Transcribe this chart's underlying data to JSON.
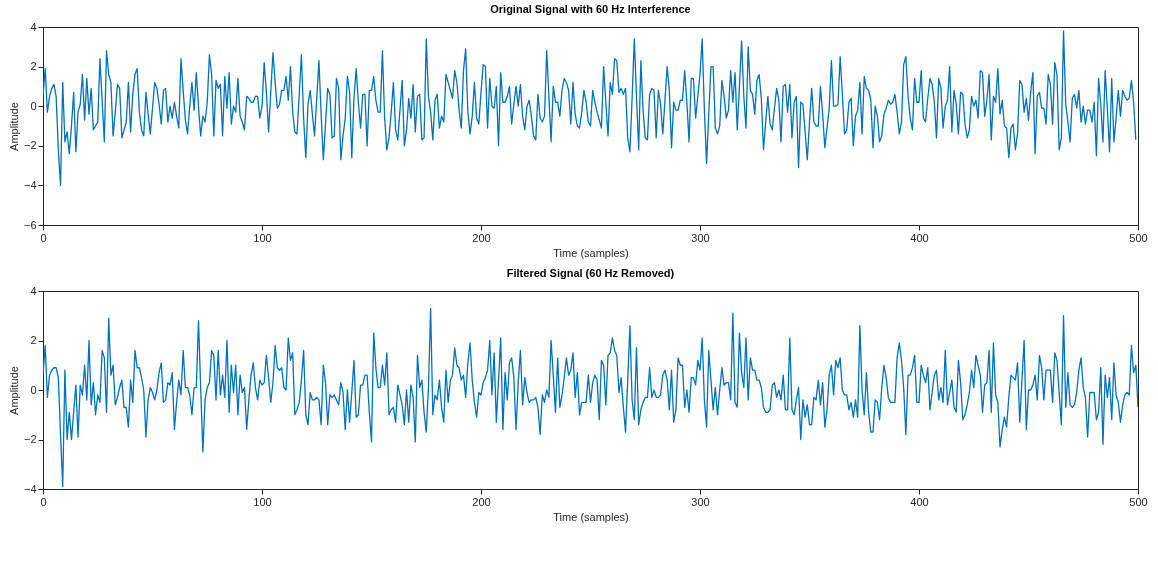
{
  "chart_data": [
    {
      "type": "line",
      "title": "Original Signal with 60 Hz Interference",
      "xlabel": "Time (samples)",
      "ylabel": "Amplitude",
      "xlim": [
        0,
        500
      ],
      "xticks": [
        0,
        100,
        200,
        300,
        400,
        500
      ],
      "ylim": [
        -6,
        4
      ],
      "yticks": [
        -6,
        -4,
        -2,
        0,
        2,
        4
      ],
      "x": [
        0,
        1,
        2,
        3,
        4,
        5,
        6,
        7,
        8,
        9,
        10,
        11,
        12,
        13,
        14,
        15,
        16,
        17,
        18,
        19,
        20,
        21,
        22,
        23,
        24,
        25,
        26,
        27,
        28,
        29,
        30,
        31,
        32,
        33,
        34,
        35,
        36,
        37,
        38,
        39,
        40,
        41,
        42,
        43,
        44,
        45,
        46,
        47,
        48,
        49,
        50,
        51,
        52,
        53,
        54,
        55,
        56,
        57,
        58,
        59,
        60,
        61,
        62,
        63,
        64,
        65,
        66,
        67,
        68,
        69,
        70,
        71,
        72,
        73,
        74,
        75,
        76,
        77,
        78,
        79,
        80,
        81,
        82,
        83,
        84,
        85,
        86,
        87,
        88,
        89,
        90,
        91,
        92,
        93,
        94,
        95,
        96,
        97,
        98,
        99,
        100,
        101,
        102,
        103,
        104,
        105,
        106,
        107,
        108,
        109,
        110,
        111,
        112,
        113,
        114,
        115,
        116,
        117,
        118,
        119,
        120,
        121,
        122,
        123,
        124,
        125,
        126,
        127,
        128,
        129,
        130,
        131,
        132,
        133,
        134,
        135,
        136,
        137,
        138,
        139,
        140,
        141,
        142,
        143,
        144,
        145,
        146,
        147,
        148,
        149,
        150,
        151,
        152,
        153,
        154,
        155,
        156,
        157,
        158,
        159,
        160,
        161,
        162,
        163,
        164,
        165,
        166,
        167,
        168,
        169,
        170,
        171,
        172,
        173,
        174,
        175,
        176,
        177,
        178,
        179,
        180,
        181,
        182,
        183,
        184,
        185,
        186,
        187,
        188,
        189,
        190,
        191,
        192,
        193,
        194,
        195,
        196,
        197,
        198,
        199,
        200,
        201,
        202,
        203,
        204,
        205,
        206,
        207,
        208,
        209,
        210,
        211,
        212,
        213,
        214,
        215,
        216,
        217,
        218,
        219,
        220,
        221,
        222,
        223,
        224,
        225,
        226,
        227,
        228,
        229,
        230,
        231,
        232,
        233,
        234,
        235,
        236,
        237,
        238,
        239,
        240,
        241,
        242,
        243,
        244,
        245,
        246,
        247,
        248,
        249,
        250,
        251,
        252,
        253,
        254,
        255,
        256,
        257,
        258,
        259,
        260,
        261,
        262,
        263,
        264,
        265,
        266,
        267,
        268,
        269,
        270,
        271,
        272,
        273,
        274,
        275,
        276,
        277,
        278,
        279,
        280,
        281,
        282,
        283,
        284,
        285,
        286,
        287,
        288,
        289,
        290,
        291,
        292,
        293,
        294,
        295,
        296,
        297,
        298,
        299,
        300,
        301,
        302,
        303,
        304,
        305,
        306,
        307,
        308,
        309,
        310,
        311,
        312,
        313,
        314,
        315,
        316,
        317,
        318,
        319,
        320,
        321,
        322,
        323,
        324,
        325,
        326,
        327,
        328,
        329,
        330,
        331,
        332,
        333,
        334,
        335,
        336,
        337,
        338,
        339,
        340,
        341,
        342,
        343,
        344,
        345,
        346,
        347,
        348,
        349,
        350,
        351,
        352,
        353,
        354,
        355,
        356,
        357,
        358,
        359,
        360,
        361,
        362,
        363,
        364,
        365,
        366,
        367,
        368,
        369,
        370,
        371,
        372,
        373,
        374,
        375,
        376,
        377,
        378,
        379,
        380,
        381,
        382,
        383,
        384,
        385,
        386,
        387,
        388,
        389,
        390,
        391,
        392,
        393,
        394,
        395,
        396,
        397,
        398,
        399,
        400,
        401,
        402,
        403,
        404,
        405,
        406,
        407,
        408,
        409,
        410,
        411,
        412,
        413,
        414,
        415,
        416,
        417,
        418,
        419,
        420,
        421,
        422,
        423,
        424,
        425,
        426,
        427,
        428,
        429,
        430,
        431,
        432,
        433,
        434,
        435,
        436,
        437,
        438,
        439,
        440,
        441,
        442,
        443,
        444,
        445,
        446,
        447,
        448,
        449,
        450,
        451,
        452,
        453,
        454,
        455,
        456,
        457,
        458,
        459,
        460,
        461,
        462,
        463,
        464,
        465,
        466,
        467,
        468,
        469,
        470,
        471,
        472,
        473,
        474,
        475,
        476,
        477,
        478,
        479,
        480,
        481,
        482,
        483,
        484,
        485,
        486,
        487,
        488,
        489,
        490,
        491,
        492,
        493,
        494,
        495,
        496,
        497,
        498,
        499
      ],
      "series": [
        {
          "color": "#0072bd",
          "values": [
            0.5,
            1.9,
            -0.3,
            0.5,
            0.9,
            1.1,
            0.5,
            -2.2,
            -4.0,
            1.2,
            -1.8,
            -1.3,
            -2.4,
            -1.0,
            0.7,
            -2.3,
            -0.3,
            0.1,
            1.6,
            -0.7,
            1.4,
            -0.4,
            0.9,
            -1.2,
            -1.0,
            -0.8,
            2.4,
            0.3,
            -1.8,
            2.8,
            1.6,
            1.2,
            -1.5,
            -0.3,
            1.1,
            0.9,
            -1.6,
            -1.2,
            -0.8,
            1.2,
            -1.3,
            0.6,
            1.6,
            1.9,
            -0.3,
            -1.2,
            -1.5,
            0.7,
            -0.4,
            -1.4,
            -0.1,
            1.2,
            0.9,
            0.1,
            -0.9,
            0.8,
            0.9,
            -0.8,
            0,
            -0.6,
            0.2,
            -0.5,
            -1.1,
            2.4,
            0.8,
            -0.7,
            -1.4,
            0,
            1.2,
            -0.2,
            1.7,
            0,
            -1.5,
            -0.5,
            -0.8,
            0.2,
            2.6,
            1.6,
            -1.5,
            1.3,
            0.9,
            1.1,
            -1.5,
            1.5,
            -0.1,
            1.7,
            -0.9,
            0,
            -0.3,
            1.4,
            -0.5,
            -0.8,
            -1.2,
            0.5,
            0.4,
            0.2,
            0.2,
            0.5,
            0.5,
            -0.6,
            0,
            2.2,
            0.7,
            -1.3,
            0.7,
            2.7,
            1.2,
            -0.1,
            0.1,
            0.8,
            0.8,
            1.5,
            0.3,
            2.0,
            -0.3,
            -1.3,
            -1.4,
            0.6,
            2.6,
            -0.6,
            -2.6,
            0.1,
            0.8,
            -0.4,
            -1.5,
            0.4,
            2.3,
            -0.4,
            -2.7,
            -0.9,
            0.9,
            0.6,
            -1.6,
            -1.5,
            1.4,
            0.9,
            -2.7,
            -1.5,
            -0.6,
            1.5,
            0.7,
            -2.6,
            0.4,
            1.9,
            0.2,
            -1.1,
            0.6,
            0.6,
            -2.0,
            0.8,
            0.8,
            1.5,
            0.3,
            -0.3,
            -0.3,
            2.8,
            -0.6,
            -2.2,
            -1.6,
            -0.3,
            1.2,
            -1.2,
            -1.7,
            -0.2,
            1.3,
            -2.0,
            -1.2,
            0.4,
            -0.6,
            1.1,
            -1.3,
            0.5,
            0.6,
            -1.7,
            -1.6,
            3.4,
            0.5,
            -0.3,
            -1.7,
            0.3,
            0.6,
            -1.1,
            -0.5,
            -0.8,
            1.6,
            1.2,
            0.8,
            0.4,
            1.8,
            1.2,
            -0.2,
            -1.1,
            1.8,
            2.9,
            -0.3,
            -1.4,
            -0.5,
            1.2,
            -0.6,
            -0.9,
            0.7,
            2.1,
            2.0,
            -1.1,
            1.4,
            0,
            -0.1,
            1.0,
            -2.0,
            1.7,
            0.2,
            0.2,
            0.5,
            1.0,
            -0.9,
            0.1,
            1.0,
            0,
            1.1,
            -0.5,
            -1.2,
            0,
            0.3,
            -0.5,
            -1.5,
            -1.7,
            0.6,
            -0.6,
            -0.8,
            -0.5,
            2.8,
            0.5,
            -1.8,
            1.0,
            0.2,
            0.2,
            -0.5,
            0.8,
            1.4,
            1.2,
            0.8,
            -0.9,
            1.2,
            -0.4,
            -1.0,
            -1.1,
            -0.3,
            0.8,
            0.2,
            -0.8,
            -1.0,
            0.8,
            0.2,
            -0.3,
            -0.7,
            -1.1,
            2.0,
            0.2,
            -1.5,
            1.2,
            0.6,
            2.4,
            2.3,
            0.7,
            0.9,
            0.6,
            0.9,
            -1.6,
            -2.3,
            0.4,
            3.4,
            0.5,
            -2.2,
            2.3,
            -0.2,
            -1.6,
            -1.7,
            0.6,
            0.9,
            0.8,
            -1.6,
            0.8,
            0.1,
            -1.4,
            0.3,
            2.0,
            0.8,
            -2.1,
            0.2,
            -0.2,
            -0.2,
            0.3,
            0.3,
            1.8,
            0.2,
            -1.8,
            1.4,
            1.4,
            -0.6,
            0.5,
            1.6,
            3.4,
            -0.2,
            -2.9,
            -0.4,
            2.0,
            2.0,
            -1.1,
            -1.4,
            -1.0,
            1.3,
            0.5,
            -0.6,
            -0.2,
            1.8,
            0.2,
            1.7,
            -1.2,
            1.0,
            3.3,
            0.5,
            -1.1,
            3.0,
            0.8,
            0.6,
            -0.4,
            1.3,
            1.6,
            0.4,
            -2.2,
            -0.8,
            0.5,
            -0.9,
            -1.2,
            -0.1,
            0.9,
            0.3,
            -1.8,
            1.0,
            1.1,
            -0.3,
            1.1,
            -1.6,
            0.2,
            0.5,
            -3.1,
            0.2,
            0.1,
            -1.3,
            -2.7,
            -0.8,
            0.9,
            -0.8,
            -1.0,
            -1.0,
            1.0,
            -0.4,
            -2.1,
            -1.1,
            -0.1,
            2.3,
            0,
            0,
            0.1,
            2.5,
            0.6,
            -1.4,
            -1.2,
            0.2,
            0.4,
            -2.0,
            -0.5,
            -0.2,
            1.2,
            -1.4,
            1.5,
            0.9,
            0.8,
            0.3,
            -2.1,
            0,
            -0.5,
            -1.8,
            -1.5,
            -0.4,
            -0.1,
            0.3,
            0.1,
            0.2,
            0.6,
            -0.3,
            -1.4,
            -0.8,
            2.1,
            2.5,
            0.5,
            -0.6,
            -1.2,
            1.4,
            0.2,
            0.2,
            1.8,
            -0.6,
            -0.8,
            0.4,
            1.4,
            1.1,
            0.2,
            -1.6,
            1.4,
            0.9,
            -1.1,
            0,
            0.3,
            2.0,
            -1.3,
            0.8,
            0.1,
            -1.4,
            0.7,
            0.6,
            -0.9,
            -1.6,
            -1.2,
            0.5,
            0,
            0.3,
            -0.6,
            1.8,
            1.7,
            -0.5,
            0.3,
            1.6,
            -1.7,
            0.5,
            0.2,
            1.9,
            -0.4,
            0.3,
            -1.0,
            -1.1,
            -2.6,
            -1.1,
            -0.9,
            -2.2,
            -1.4,
            1.3,
            1.1,
            -0.3,
            0.4,
            -0.7,
            0.7,
            1.7,
            -2.4,
            0.5,
            0.7,
            -0.1,
            -0.1,
            -0.9,
            1.6,
            1.1,
            -0.9,
            2.2,
            1.6,
            -2.2,
            -1.6,
            3.8,
            0.1,
            -0.8,
            -1.8,
            0.4,
            0.6,
            -0.1,
            0.8,
            -0.8,
            0,
            -0.9,
            -0.2,
            -0.2,
            -0.8,
            0.2,
            -2.5,
            1.4,
            0.1,
            -1.8,
            1.8,
            -0.1,
            -2.3,
            1.4,
            -1.8,
            -0.6,
            0.8,
            -0.5,
            0.8,
            0.5,
            0.3,
            0.4,
            1.3,
            0.2,
            -1.7
          ]
        }
      ]
    },
    {
      "type": "line",
      "title": "Filtered Signal (60 Hz Removed)",
      "xlabel": "Time (samples)",
      "ylabel": "Amplitude",
      "xlim": [
        0,
        500
      ],
      "xticks": [
        0,
        100,
        200,
        300,
        400,
        500
      ],
      "ylim": [
        -4,
        4
      ],
      "yticks": [
        -4,
        -2,
        0,
        2,
        4
      ],
      "x": [
        0,
        1,
        2,
        3,
        4,
        5,
        6,
        7,
        8,
        9,
        10,
        11,
        12,
        13,
        14,
        15,
        16,
        17,
        18,
        19,
        20,
        21,
        22,
        23,
        24,
        25,
        26,
        27,
        28,
        29,
        30,
        31,
        32,
        33,
        34,
        35,
        36,
        37,
        38,
        39,
        40,
        41,
        42,
        43,
        44,
        45,
        46,
        47,
        48,
        49,
        50,
        51,
        52,
        53,
        54,
        55,
        56,
        57,
        58,
        59,
        60,
        61,
        62,
        63,
        64,
        65,
        66,
        67,
        68,
        69,
        70,
        71,
        72,
        73,
        74,
        75,
        76,
        77,
        78,
        79,
        80,
        81,
        82,
        83,
        84,
        85,
        86,
        87,
        88,
        89,
        90,
        91,
        92,
        93,
        94,
        95,
        96,
        97,
        98,
        99,
        100,
        101,
        102,
        103,
        104,
        105,
        106,
        107,
        108,
        109,
        110,
        111,
        112,
        113,
        114,
        115,
        116,
        117,
        118,
        119,
        120,
        121,
        122,
        123,
        124,
        125,
        126,
        127,
        128,
        129,
        130,
        131,
        132,
        133,
        134,
        135,
        136,
        137,
        138,
        139,
        140,
        141,
        142,
        143,
        144,
        145,
        146,
        147,
        148,
        149,
        150,
        151,
        152,
        153,
        154,
        155,
        156,
        157,
        158,
        159,
        160,
        161,
        162,
        163,
        164,
        165,
        166,
        167,
        168,
        169,
        170,
        171,
        172,
        173,
        174,
        175,
        176,
        177,
        178,
        179,
        180,
        181,
        182,
        183,
        184,
        185,
        186,
        187,
        188,
        189,
        190,
        191,
        192,
        193,
        194,
        195,
        196,
        197,
        198,
        199,
        200,
        201,
        202,
        203,
        204,
        205,
        206,
        207,
        208,
        209,
        210,
        211,
        212,
        213,
        214,
        215,
        216,
        217,
        218,
        219,
        220,
        221,
        222,
        223,
        224,
        225,
        226,
        227,
        228,
        229,
        230,
        231,
        232,
        233,
        234,
        235,
        236,
        237,
        238,
        239,
        240,
        241,
        242,
        243,
        244,
        245,
        246,
        247,
        248,
        249,
        250,
        251,
        252,
        253,
        254,
        255,
        256,
        257,
        258,
        259,
        260,
        261,
        262,
        263,
        264,
        265,
        266,
        267,
        268,
        269,
        270,
        271,
        272,
        273,
        274,
        275,
        276,
        277,
        278,
        279,
        280,
        281,
        282,
        283,
        284,
        285,
        286,
        287,
        288,
        289,
        290,
        291,
        292,
        293,
        294,
        295,
        296,
        297,
        298,
        299,
        300,
        301,
        302,
        303,
        304,
        305,
        306,
        307,
        308,
        309,
        310,
        311,
        312,
        313,
        314,
        315,
        316,
        317,
        318,
        319,
        320,
        321,
        322,
        323,
        324,
        325,
        326,
        327,
        328,
        329,
        330,
        331,
        332,
        333,
        334,
        335,
        336,
        337,
        338,
        339,
        340,
        341,
        342,
        343,
        344,
        345,
        346,
        347,
        348,
        349,
        350,
        351,
        352,
        353,
        354,
        355,
        356,
        357,
        358,
        359,
        360,
        361,
        362,
        363,
        364,
        365,
        366,
        367,
        368,
        369,
        370,
        371,
        372,
        373,
        374,
        375,
        376,
        377,
        378,
        379,
        380,
        381,
        382,
        383,
        384,
        385,
        386,
        387,
        388,
        389,
        390,
        391,
        392,
        393,
        394,
        395,
        396,
        397,
        398,
        399,
        400,
        401,
        402,
        403,
        404,
        405,
        406,
        407,
        408,
        409,
        410,
        411,
        412,
        413,
        414,
        415,
        416,
        417,
        418,
        419,
        420,
        421,
        422,
        423,
        424,
        425,
        426,
        427,
        428,
        429,
        430,
        431,
        432,
        433,
        434,
        435,
        436,
        437,
        438,
        439,
        440,
        441,
        442,
        443,
        444,
        445,
        446,
        447,
        448,
        449,
        450,
        451,
        452,
        453,
        454,
        455,
        456,
        457,
        458,
        459,
        460,
        461,
        462,
        463,
        464,
        465,
        466,
        467,
        468,
        469,
        470,
        471,
        472,
        473,
        474,
        475,
        476,
        477,
        478,
        479,
        480,
        481,
        482,
        483,
        484,
        485,
        486,
        487,
        488,
        489,
        490,
        491,
        492,
        493,
        494,
        495,
        496,
        497,
        498,
        499,
        500
      ],
      "series": [
        {
          "color": "#0072bd",
          "values": [
            0.6,
            1.8,
            -0.3,
            0.6,
            0.8,
            0.9,
            0.9,
            0.5,
            -1.8,
            -3.9,
            0.8,
            -2.0,
            -0.9,
            -2.0,
            -0.9,
            0.2,
            -1.9,
            0.2,
            -0.2,
            1.0,
            -0.4,
            2.0,
            -0.6,
            0.3,
            -1.0,
            -0.2,
            -0.5,
            1.6,
            1.3,
            -0.9,
            2.9,
            0.6,
            1.0,
            -0.6,
            -0.3,
            0.1,
            0.4,
            -0.7,
            -0.7,
            -1.5,
            0.4,
            -0.5,
            1.6,
            0.9,
            0.9,
            0.5,
            0,
            -1.9,
            -0.4,
            0.1,
            -0.1,
            -0.4,
            0,
            0.7,
            1.1,
            -0.5,
            -0.4,
            0.3,
            0.2,
            0.7,
            -1.6,
            -0.5,
            0.4,
            -0.2,
            1.6,
            0.1,
            0.1,
            -0.2,
            -1.0,
            0.1,
            0.1,
            2.8,
            0.1,
            -2.5,
            -0.4,
            0.1,
            0.3,
            1.6,
            1.4,
            -0.4,
            1.6,
            -0.2,
            0.6,
            -0.3,
            2.0,
            -0.9,
            1.0,
            -0.1,
            1.0,
            -1.0,
            0.6,
            -0.1,
            0.1,
            -1.6,
            -0.4,
            0.6,
            1.1,
            0.1,
            -0.4,
            0.4,
            0.2,
            0.3,
            1.4,
            0.5,
            -0.5,
            0.3,
            1.8,
            0.9,
            0.8,
            0.9,
            0.1,
            0,
            2.1,
            1.2,
            1.5,
            -1.0,
            -0.8,
            -0.5,
            0.4,
            1.6,
            -1.0,
            -1.4,
            -0.1,
            -0.4,
            -0.4,
            -0.3,
            -0.4,
            -1.4,
            1.0,
            0.3,
            -1.4,
            -0.2,
            -0.3,
            -0.2,
            -0.4,
            -0.6,
            0.3,
            -0.1,
            -1.6,
            0,
            -1.3,
            -0.1,
            1.2,
            -1.1,
            -1.0,
            0.2,
            0.2,
            0.6,
            0.6,
            -0.9,
            -2.1,
            2.3,
            0.9,
            0.1,
            0.1,
            1.0,
            0.2,
            1.5,
            -1.0,
            -0.8,
            -0.7,
            -1.3,
            0.2,
            -0.2,
            -0.6,
            -1.4,
            0,
            -1.3,
            0.2,
            -0.3,
            -2.1,
            1.4,
            0.1,
            0.4,
            -0.9,
            -1.7,
            0.1,
            3.3,
            -1.0,
            -0.2,
            -0.4,
            0.4,
            -0.7,
            -1.3,
            0.8,
            -0.5,
            0.4,
            0.6,
            1.7,
            1.0,
            0.9,
            0.4,
            0.6,
            -0.3,
            1.1,
            1.9,
            0.4,
            -0.5,
            -1.1,
            -0.1,
            -0.2,
            0.3,
            0.5,
            0.8,
            2.0,
            -0.2,
            1.5,
            -1.3,
            0.4,
            2.1,
            -1.6,
            0.7,
            -0.4,
            1.1,
            1.3,
            0.5,
            -1.6,
            0.3,
            1.6,
            -0.6,
            0.5,
            -0.1,
            -0.5,
            -0.4,
            -0.4,
            -0.3,
            -0.7,
            -1.8,
            -0.2,
            -0.5,
            0,
            -0.3,
            2.0,
            0.6,
            -0.9,
            1.3,
            -0.7,
            -0.2,
            0.5,
            1.3,
            0.6,
            0.8,
            1.5,
            -0.3,
            0.7,
            -1.0,
            -0.5,
            -0.5,
            -0.5,
            0.6,
            -0.5,
            0.3,
            0.6,
            0.4,
            -1.2,
            1.2,
            1.0,
            -0.6,
            1.4,
            1.5,
            2.1,
            1.6,
            1.4,
            -0.1,
            0.5,
            -0.7,
            -1.7,
            0.4,
            2.6,
            -0.4,
            -1.2,
            1.7,
            -1.4,
            -0.8,
            -0.5,
            -0.3,
            -0.3,
            0.9,
            -0.3,
            0,
            -0.3,
            -0.3,
            -0.2,
            0.6,
            0.8,
            0.4,
            -0.8,
            0.8,
            -1.3,
            -0.8,
            1.3,
            1.0,
            1.0,
            -0.7,
            0,
            -0.9,
            0.5,
            0.5,
            0.2,
            1.2,
            0.8,
            2.1,
            -0.4,
            -1.5,
            1.6,
            0.4,
            -0.8,
            0.1,
            -1.0,
            0,
            0.9,
            0.2,
            0.3,
            0.3,
            -0.4,
            3.1,
            -0.5,
            -0.7,
            2.3,
            0.7,
            0.1,
            2.1,
            -0.4,
            1.3,
            0.8,
            0.8,
            0.4,
            0.4,
            0.1,
            -0.7,
            -0.9,
            -0.9,
            -0.8,
            0.2,
            0.3,
            -0.3,
            0,
            -0.4,
            0.6,
            -0.8,
            -0.8,
            2.1,
            -0.8,
            -1.0,
            -0.4,
            0.1,
            -2.0,
            -0.4,
            -1.1,
            -0.6,
            -1.4,
            -1.4,
            -0.3,
            -0.4,
            0.4,
            -0.6,
            0.3,
            -1.5,
            -0.8,
            0.6,
            1.0,
            -0.2,
            1.2,
            0.9,
            1.3,
            0,
            -0.2,
            -0.2,
            -0.8,
            -0.5,
            -1.1,
            -0.4,
            -1.1,
            2.6,
            0,
            -1.0,
            0.7,
            -0.9,
            -1.7,
            -1.7,
            -0.4,
            -0.5,
            -1.2,
            0.1,
            1.0,
            0.5,
            -0.3,
            -0.5,
            -0.5,
            -0.5,
            1.3,
            1.9,
            1.2,
            0.1,
            -1.8,
            0.6,
            0.6,
            0.9,
            1.4,
            -0.5,
            -0.5,
            1.0,
            0.6,
            0.3,
            0.9,
            -0.8,
            -0.1,
            0.6,
            0.8,
            -0.4,
            0.1,
            -0.5,
            1.6,
            -0.6,
            -0.1,
            0.4,
            -0.7,
            -0.9,
            1.2,
            0.3,
            -1.2,
            -1.0,
            -0.6,
            -0.1,
            0.8,
            0.1,
            1.4,
            1.0,
            0.6,
            -0.9,
            0.2,
            0.3,
            1.6,
            -0.9,
            1.9,
            -0.2,
            -0.5,
            -2.3,
            -1.6,
            -1.1,
            -1.5,
            -0.3,
            0.6,
            0.5,
            0.4,
            1.1,
            -1.3,
            0.4,
            2.0,
            -1.6,
            0,
            0,
            0.2,
            0.6,
            -0.4,
            1.4,
            0.9,
            -0.4,
            0.8,
            0.8,
            0.8,
            -0.5,
            1.5,
            1.2,
            -0.1,
            -1.4,
            3.0,
            -0.7,
            0.7,
            -0.6,
            -0.7,
            -0.6,
            -0.1,
            0.8,
            1.3,
            0.1,
            -0.3,
            -1.9,
            -0.1,
            -0.1,
            -0.1,
            -1.2,
            -0.9,
            0.9,
            -2.2,
            0.6,
            -0.3,
            0.5,
            -1.2,
            1.1,
            -0.2,
            -0.5,
            -1.3,
            -0.6,
            -0.2,
            -0.1,
            -0.2,
            1.8,
            0.7,
            1.0,
            -0.7
          ]
        }
      ]
    }
  ]
}
